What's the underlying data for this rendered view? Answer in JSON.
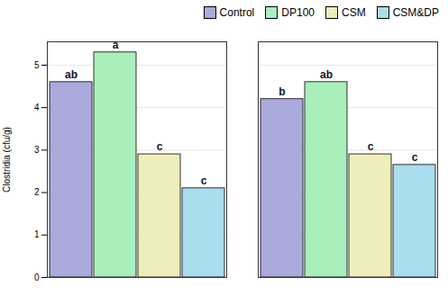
{
  "chart_data": {
    "type": "bar",
    "categories": [
      null,
      null
    ],
    "series": [
      {
        "name": "Control",
        "color": "#aaaadd",
        "values": [
          4.6,
          4.2
        ],
        "annotations": [
          "ab",
          "b"
        ]
      },
      {
        "name": "DP100",
        "color": "#aaeebb",
        "values": [
          5.3,
          4.6
        ],
        "annotations": [
          "a",
          "ab"
        ]
      },
      {
        "name": "CSM",
        "color": "#eeeebb",
        "values": [
          2.9,
          2.9
        ],
        "annotations": [
          "c",
          "c"
        ]
      },
      {
        "name": "CSM&DP",
        "color": "#aaddee",
        "values": [
          2.1,
          2.65
        ],
        "annotations": [
          "c",
          "c"
        ]
      }
    ],
    "ylabel": "Clostridia (cfu/g)",
    "ylim": [
      0,
      5.55
    ],
    "yticks": [
      0,
      1,
      2,
      3,
      4,
      5
    ],
    "grid": true,
    "legend": "upper right",
    "tick_labels": "y"
  }
}
